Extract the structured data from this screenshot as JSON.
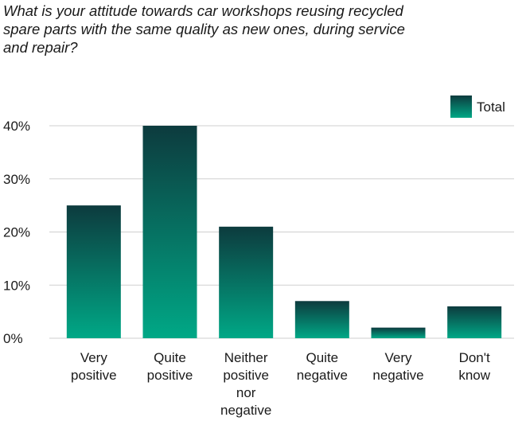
{
  "chart_data": {
    "type": "bar",
    "title": "What is your attitude towards car workshops reusing recycled spare parts with the same quality as new ones, during service and repair?",
    "categories": [
      [
        "Very",
        "positive"
      ],
      [
        "Quite",
        "positive"
      ],
      [
        "Neither",
        "positive",
        "nor",
        "negative"
      ],
      [
        "Quite",
        "negative"
      ],
      [
        "Very",
        "negative"
      ],
      [
        "Don't",
        "know"
      ]
    ],
    "series": [
      {
        "name": "Total",
        "values": [
          25,
          40,
          21,
          7,
          2,
          6
        ]
      }
    ],
    "ylim": [
      0,
      40
    ],
    "yticks": [
      0,
      10,
      20,
      30,
      40
    ],
    "ytick_suffix": "%",
    "grid": true,
    "legend_position": "top-right",
    "colors": {
      "bar_top": "#0d3b3e",
      "bar_bottom": "#00a886",
      "grid": "#cfcfcf"
    }
  }
}
